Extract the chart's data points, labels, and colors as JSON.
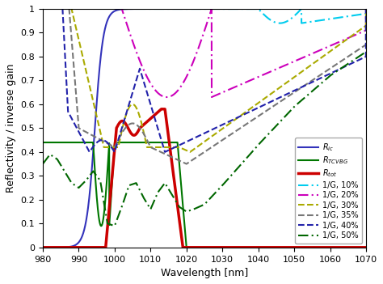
{
  "xlim": [
    980,
    1070
  ],
  "ylim": [
    0,
    1.0
  ],
  "xlabel": "Wavelength [nm]",
  "ylabel": "Reflectivity / inverse gain",
  "xticks": [
    980,
    990,
    1000,
    1010,
    1020,
    1030,
    1040,
    1050,
    1060,
    1070
  ],
  "yticks": [
    0,
    0.1,
    0.2,
    0.3,
    0.4,
    0.5,
    0.6,
    0.7,
    0.8,
    0.9,
    1
  ],
  "colors": {
    "Ric": "#3333bb",
    "RTCVBG": "#007700",
    "Rtot": "#cc0000",
    "G10": "#00ccee",
    "G20": "#cc00bb",
    "G30": "#aaaa00",
    "G35": "#777777",
    "G40": "#2222aa",
    "G50": "#006600"
  }
}
